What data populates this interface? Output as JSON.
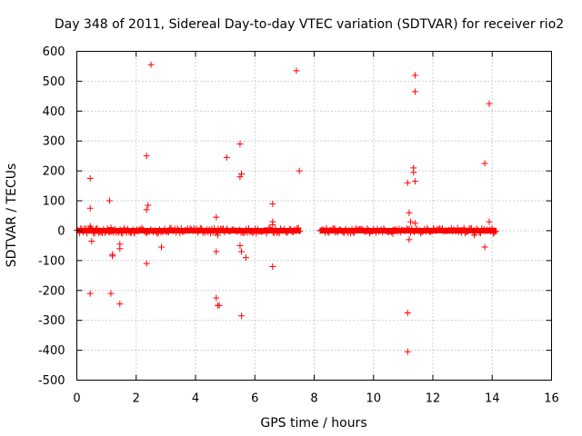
{
  "chart_data": {
    "type": "scatter",
    "title": "Day 348 of 2011, Sidereal Day-to-day VTEC variation (SDTVAR) for receiver rio2",
    "xlabel": "GPS time / hours",
    "ylabel": "SDTVAR / TECUs",
    "xlim": [
      0,
      16
    ],
    "ylim": [
      -500,
      600
    ],
    "xticks": [
      "0",
      "2",
      "4",
      "6",
      "8",
      "10",
      "12",
      "14",
      "16"
    ],
    "yticks": [
      "-500",
      "-400",
      "-300",
      "-200",
      "-100",
      "0",
      "100",
      "200",
      "300",
      "400",
      "500",
      "600"
    ],
    "grid": true,
    "marker": "+",
    "color": "#ff0000",
    "dense_band": [
      {
        "x_start": 0.0,
        "x_end": 7.55,
        "y_min": -12,
        "y_max": 12
      },
      {
        "x_start": 8.2,
        "x_end": 14.15,
        "y_min": -12,
        "y_max": 12
      }
    ],
    "outliers": [
      {
        "x": 0.45,
        "y": 175
      },
      {
        "x": 0.45,
        "y": 75
      },
      {
        "x": 0.45,
        "y": 15
      },
      {
        "x": 0.5,
        "y": -35
      },
      {
        "x": 0.45,
        "y": -210
      },
      {
        "x": 1.1,
        "y": 100
      },
      {
        "x": 1.15,
        "y": 10
      },
      {
        "x": 1.2,
        "y": -80
      },
      {
        "x": 1.2,
        "y": -85
      },
      {
        "x": 1.15,
        "y": -210
      },
      {
        "x": 1.45,
        "y": -45
      },
      {
        "x": 1.45,
        "y": -60
      },
      {
        "x": 1.45,
        "y": -245
      },
      {
        "x": 2.35,
        "y": 250
      },
      {
        "x": 2.4,
        "y": 85
      },
      {
        "x": 2.35,
        "y": 70
      },
      {
        "x": 2.35,
        "y": -110
      },
      {
        "x": 2.5,
        "y": 555
      },
      {
        "x": 2.85,
        "y": -55
      },
      {
        "x": 4.7,
        "y": 45
      },
      {
        "x": 4.75,
        "y": -15
      },
      {
        "x": 4.7,
        "y": -70
      },
      {
        "x": 4.7,
        "y": -225
      },
      {
        "x": 4.75,
        "y": -250
      },
      {
        "x": 4.8,
        "y": -250
      },
      {
        "x": 5.05,
        "y": 245
      },
      {
        "x": 5.5,
        "y": 290
      },
      {
        "x": 5.55,
        "y": 190
      },
      {
        "x": 5.5,
        "y": 180
      },
      {
        "x": 5.5,
        "y": -50
      },
      {
        "x": 5.55,
        "y": -70
      },
      {
        "x": 5.7,
        "y": -90
      },
      {
        "x": 5.55,
        "y": -285
      },
      {
        "x": 6.6,
        "y": 90
      },
      {
        "x": 6.6,
        "y": 30
      },
      {
        "x": 6.6,
        "y": 20
      },
      {
        "x": 6.6,
        "y": -120
      },
      {
        "x": 7.4,
        "y": 535
      },
      {
        "x": 7.5,
        "y": 200
      },
      {
        "x": 8.7,
        "y": -5
      },
      {
        "x": 10.65,
        "y": -10
      },
      {
        "x": 11.15,
        "y": 160
      },
      {
        "x": 11.2,
        "y": 60
      },
      {
        "x": 11.25,
        "y": 30
      },
      {
        "x": 11.2,
        "y": -30
      },
      {
        "x": 11.15,
        "y": -275
      },
      {
        "x": 11.15,
        "y": -405
      },
      {
        "x": 11.4,
        "y": 520
      },
      {
        "x": 11.4,
        "y": 465
      },
      {
        "x": 11.35,
        "y": 210
      },
      {
        "x": 11.35,
        "y": 195
      },
      {
        "x": 11.4,
        "y": 165
      },
      {
        "x": 11.4,
        "y": 25
      },
      {
        "x": 13.4,
        "y": -15
      },
      {
        "x": 13.75,
        "y": 225
      },
      {
        "x": 13.75,
        "y": -55
      },
      {
        "x": 13.9,
        "y": 425
      },
      {
        "x": 13.9,
        "y": 30
      }
    ]
  }
}
